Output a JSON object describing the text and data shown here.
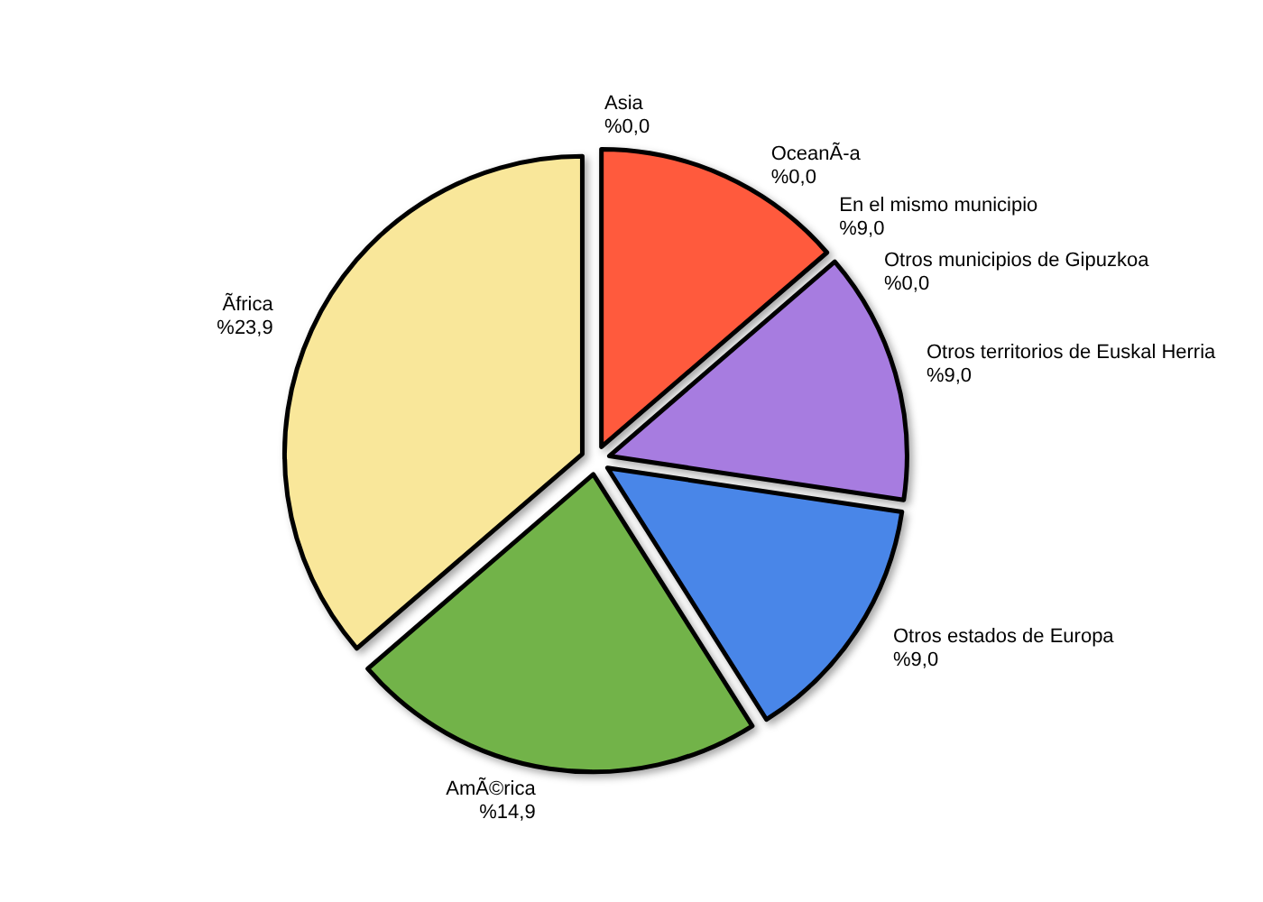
{
  "chart_data": {
    "type": "pie",
    "categories": [
      "En el mismo municipio",
      "Otros municipios de Gipuzkoa",
      "Otros territorios de Euskal Herria",
      "Otros estados de Europa",
      "AmÃ©rica",
      "Ãfrica",
      "Asia",
      "OceanÃ-a"
    ],
    "values": [
      9.0,
      0.0,
      9.0,
      9.0,
      14.9,
      23.9,
      0.0,
      0.0
    ],
    "value_labels": [
      "%9,0",
      "%0,0",
      "%9,0",
      "%9,0",
      "%14,9",
      "%23,9",
      "%0,0",
      "%0,0"
    ],
    "colors": [
      "#ff5a3c",
      "#e8943a",
      "#a77be0",
      "#4a86e8",
      "#72b34a",
      "#f9e79a",
      "#5bc0c0",
      "#c0c0c0"
    ],
    "legend": false
  }
}
